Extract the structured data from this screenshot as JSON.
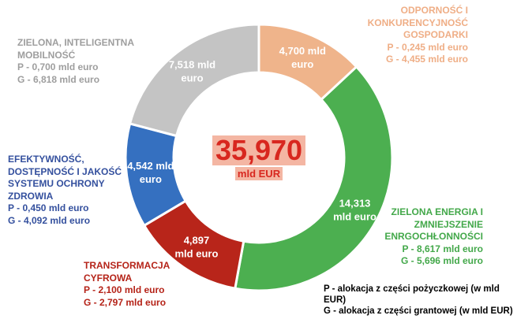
{
  "chart_data": {
    "type": "pie",
    "style": "donut",
    "center_value": "35,970",
    "center_unit": "mld EUR",
    "slices": [
      {
        "id": "odp",
        "label_lines": [
          "ODPORNOŚĆ I",
          "KONKURENCYJNOŚĆ",
          "GOSPODARKI"
        ],
        "value": 4.7,
        "slice_label": [
          "4,700 mld",
          "euro"
        ],
        "p_text": "P - 0,245 mld euro",
        "g_text": "G - 4,455 mld euro",
        "color": "#efb48b"
      },
      {
        "id": "ene",
        "label_lines": [
          "ZIELONA ENERGIA I",
          "ZMNIEJSZENIE",
          "ENRGOCHŁONNOŚCI"
        ],
        "value": 14.313,
        "slice_label": [
          "14,313",
          "mld euro"
        ],
        "p_text": "P - 8,617 mld euro",
        "g_text": "G - 5,696 mld euro",
        "color": "#4caf50"
      },
      {
        "id": "tra",
        "label_lines": [
          "TRANSFORMACJA",
          "CYFROWA"
        ],
        "value": 4.897,
        "slice_label": [
          "4,897",
          "mld euro"
        ],
        "p_text": "P - 2,100 mld euro",
        "g_text": "G - 2,797 mld euro",
        "color": "#b8251a"
      },
      {
        "id": "efe",
        "label_lines": [
          "EFEKTYWNOŚĆ,",
          "DOSTĘPNOŚĆ I JAKOŚĆ",
          "SYSTEMU OCHRONY",
          "ZDROWIA"
        ],
        "value": 4.542,
        "slice_label": [
          "4,542 mld",
          "euro"
        ],
        "p_text": "P - 0,450 mld euro",
        "g_text": "G - 4,092 mld euro",
        "color": "#3570c0"
      },
      {
        "id": "zie",
        "label_lines": [
          "ZIELONA, INTELIGENTNA",
          "MOBILNOŚĆ"
        ],
        "value": 7.518,
        "slice_label": [
          "7,518 mld",
          "euro"
        ],
        "p_text": "P - 0,700 mld euro",
        "g_text": "G - 6,818 mld euro",
        "color": "#c4c4c4"
      }
    ],
    "legend": {
      "p_line": "P -  alokacja z części pożyczkowej (w mld EUR)",
      "g_line": "G - alokacja z części grantowej (w mld EUR)"
    }
  }
}
